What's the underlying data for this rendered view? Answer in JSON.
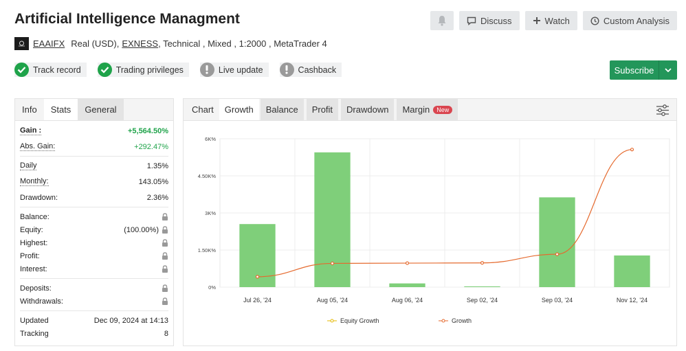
{
  "header": {
    "title": "Artificial Intelligence Managment",
    "buttons": {
      "discuss": "Discuss",
      "watch": "Watch",
      "custom_analysis": "Custom Analysis"
    }
  },
  "account": {
    "name": "EAAIFX",
    "type": "Real (USD),",
    "broker": "EXNESS",
    "details": ", Technical , Mixed , 1:2000 , MetaTrader 4"
  },
  "badges": [
    {
      "label": "Track record",
      "status": "ok"
    },
    {
      "label": "Trading privileges",
      "status": "ok"
    },
    {
      "label": "Live update",
      "status": "warn"
    },
    {
      "label": "Cashback",
      "status": "warn"
    }
  ],
  "subscribe": {
    "label": "Subscribe"
  },
  "left_tabs": [
    "Info",
    "Stats",
    "General"
  ],
  "stats": {
    "gain_label": "Gain :",
    "gain_value": "+5,564.50%",
    "abs_gain_label": "Abs. Gain:",
    "abs_gain_value": "+292.47%",
    "daily_label": "Daily",
    "daily_value": "1.35%",
    "monthly_label": "Monthly:",
    "monthly_value": "143.05%",
    "drawdown_label": "Drawdown:",
    "drawdown_value": "2.36%",
    "balance_label": "Balance:",
    "equity_label": "Equity:",
    "equity_value": "(100.00%)",
    "highest_label": "Highest:",
    "profit_label": "Profit:",
    "interest_label": "Interest:",
    "deposits_label": "Deposits:",
    "withdrawals_label": "Withdrawals:",
    "updated_label": "Updated",
    "updated_value": "Dec 09, 2024 at 14:13",
    "tracking_label": "Tracking",
    "tracking_value": "8"
  },
  "chart_tabs": {
    "chart": "Chart",
    "growth": "Growth",
    "balance": "Balance",
    "profit": "Profit",
    "drawdown": "Drawdown",
    "margin": "Margin",
    "new_badge": "New"
  },
  "chart_data": {
    "type": "bar",
    "categories": [
      "Jul 26, '24",
      "Aug 05, '24",
      "Aug 06, '24",
      "Sep 02, '24",
      "Sep 03, '24",
      "Nov 12, '24"
    ],
    "y_ticks": [
      "0%",
      "1.50K%",
      "3K%",
      "4.50K%",
      "6K%"
    ],
    "ylim": [
      0,
      6000
    ],
    "series": [
      {
        "name": "Equity Growth",
        "type": "bar",
        "values": [
          2550,
          5450,
          150,
          30,
          3630,
          1280
        ]
      },
      {
        "name": "Growth",
        "type": "line",
        "values": [
          420,
          960,
          970,
          980,
          1330,
          5564.5
        ]
      }
    ],
    "colors": {
      "bar": "#7fcf7a",
      "growth": "#e56a2e",
      "equity_marker": "#e5b800"
    },
    "legend": "bottom",
    "grid": true
  }
}
